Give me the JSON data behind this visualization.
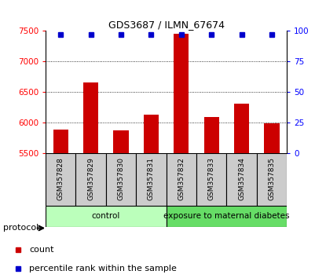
{
  "title": "GDS3687 / ILMN_67674",
  "samples": [
    "GSM357828",
    "GSM357829",
    "GSM357830",
    "GSM357831",
    "GSM357832",
    "GSM357833",
    "GSM357834",
    "GSM357835"
  ],
  "counts": [
    5880,
    6650,
    5870,
    6120,
    7450,
    6090,
    6310,
    5980
  ],
  "percentile_ranks": [
    97,
    97,
    97,
    97,
    97,
    97,
    97,
    97
  ],
  "ylim_left": [
    5500,
    7500
  ],
  "ylim_right": [
    0,
    100
  ],
  "yticks_left": [
    5500,
    6000,
    6500,
    7000,
    7500
  ],
  "yticks_right": [
    0,
    25,
    50,
    75,
    100
  ],
  "bar_color": "#cc0000",
  "dot_color": "#0000cc",
  "groups": [
    {
      "label": "control",
      "start": 0,
      "end": 4,
      "color": "#bbffbb"
    },
    {
      "label": "exposure to maternal diabetes",
      "start": 4,
      "end": 8,
      "color": "#66dd66"
    }
  ],
  "sample_box_color": "#cccccc",
  "protocol_label": "protocol",
  "legend_count_label": "count",
  "legend_percentile_label": "percentile rank within the sample",
  "background_color": "#ffffff",
  "bar_width": 0.5,
  "grid_dotted_ticks": [
    6000,
    6500,
    7000
  ]
}
